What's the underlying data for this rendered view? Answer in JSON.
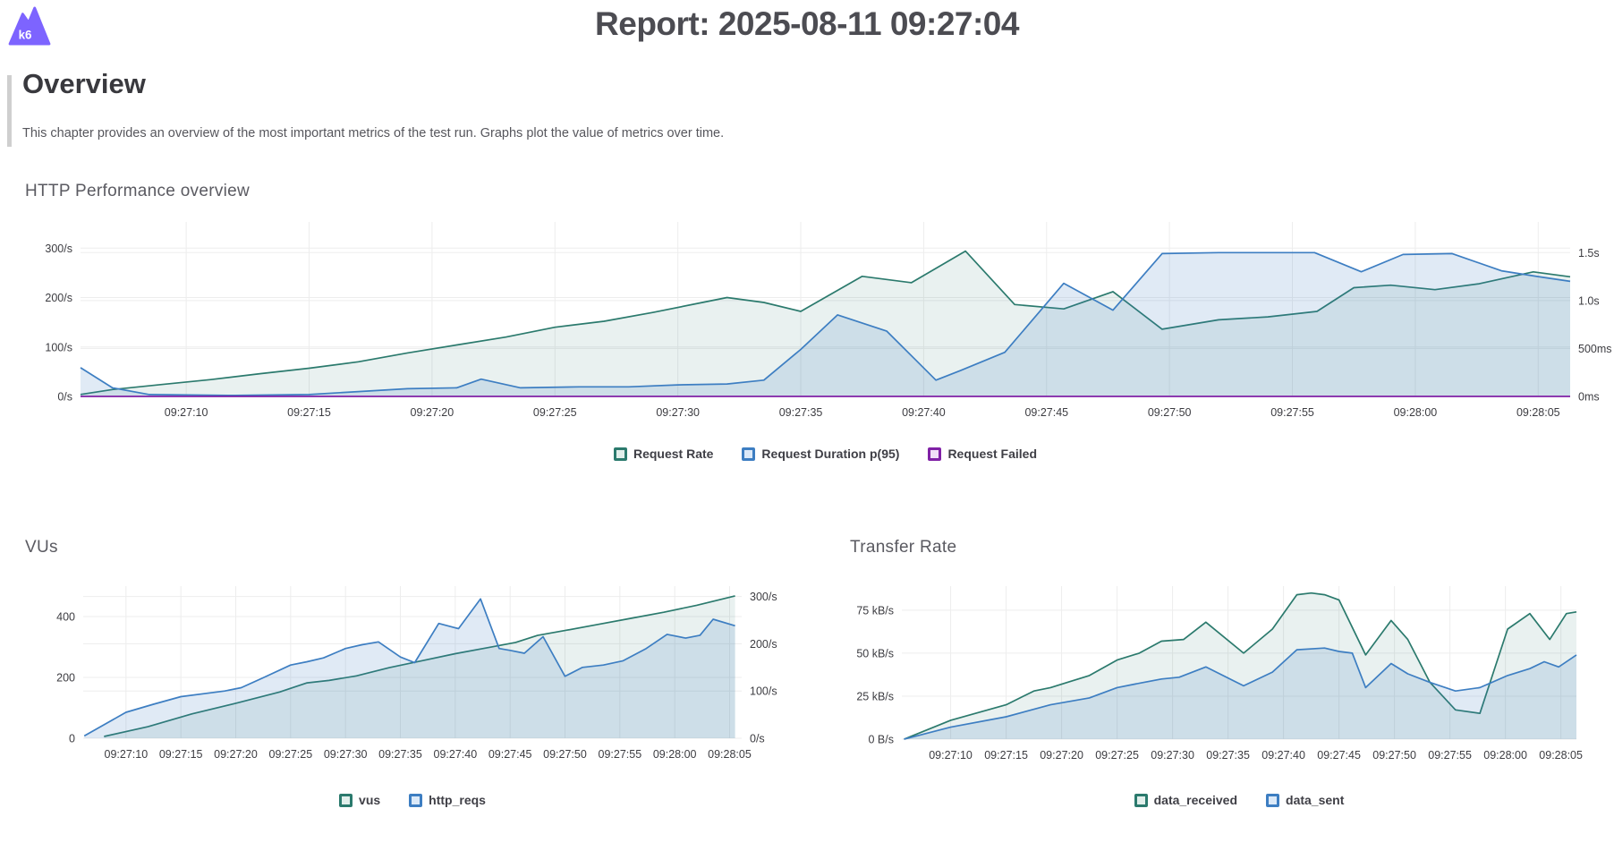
{
  "header": {
    "title": "Report: 2025-08-11 09:27:04",
    "logo_text": "k6"
  },
  "overview": {
    "heading": "Overview",
    "description": "This chapter provides an overview of the most important metrics of the test run. Graphs plot the value of metrics over time."
  },
  "colors": {
    "teal": "#2b7a6d",
    "teal_fill": "rgba(43,122,109,0.10)",
    "teal_bg": "#e1efeb",
    "blue": "#3d7ec2",
    "blue_fill": "rgba(61,126,194,0.16)",
    "blue_bg": "#dbe9f8",
    "purple": "#8021a6",
    "purple_bg": "#f0def7",
    "grid": "#ededed",
    "axis_text": "#3c3c41",
    "brand": "#7d64ff"
  },
  "chart_data": [
    {
      "type": "area",
      "key": "http-performance",
      "title": "HTTP Performance overview",
      "x_domain": [
        5.7,
        66.3
      ],
      "x_ticks": [
        {
          "v": 10,
          "label": "09:27:10"
        },
        {
          "v": 15,
          "label": "09:27:15"
        },
        {
          "v": 20,
          "label": "09:27:20"
        },
        {
          "v": 25,
          "label": "09:27:25"
        },
        {
          "v": 30,
          "label": "09:27:30"
        },
        {
          "v": 35,
          "label": "09:27:35"
        },
        {
          "v": 40,
          "label": "09:27:40"
        },
        {
          "v": 45,
          "label": "09:27:45"
        },
        {
          "v": 50,
          "label": "09:27:50"
        },
        {
          "v": 55,
          "label": "09:27:55"
        },
        {
          "v": 60,
          "label": "09:28:00"
        },
        {
          "v": 65,
          "label": "09:28:05"
        }
      ],
      "left_axis": {
        "max": 353,
        "ticks": [
          {
            "v": 0,
            "label": "0/s"
          },
          {
            "v": 100,
            "label": "100/s"
          },
          {
            "v": 200,
            "label": "200/s"
          },
          {
            "v": 300,
            "label": "300/s"
          }
        ]
      },
      "right_axis": {
        "max": 1.82,
        "ticks": [
          {
            "v": 0,
            "label": "0ms"
          },
          {
            "v": 0.5,
            "label": "500ms"
          },
          {
            "v": 1.0,
            "label": "1.0s"
          },
          {
            "v": 1.5,
            "label": "1.5s"
          }
        ]
      },
      "series": [
        {
          "name": "Request Rate",
          "axis": "left",
          "color": "teal",
          "fill": "teal_fill",
          "points": [
            [
              5.7,
              4
            ],
            [
              7,
              14
            ],
            [
              9,
              24
            ],
            [
              11,
              34
            ],
            [
              13,
              46
            ],
            [
              15,
              57
            ],
            [
              17,
              70
            ],
            [
              19,
              88
            ],
            [
              21,
              104
            ],
            [
              23,
              120
            ],
            [
              25,
              140
            ],
            [
              27,
              152
            ],
            [
              29,
              170
            ],
            [
              31,
              190
            ],
            [
              32,
              200
            ],
            [
              33.5,
              190
            ],
            [
              35,
              172
            ],
            [
              37.5,
              243
            ],
            [
              39.5,
              230
            ],
            [
              41.7,
              294
            ],
            [
              43.7,
              186
            ],
            [
              45.7,
              177
            ],
            [
              47.7,
              212
            ],
            [
              49.7,
              136
            ],
            [
              52,
              155
            ],
            [
              54,
              161
            ],
            [
              56,
              172
            ],
            [
              57.5,
              220
            ],
            [
              59,
              225
            ],
            [
              60.8,
              216
            ],
            [
              62.6,
              228
            ],
            [
              64.8,
              252
            ],
            [
              66.3,
              242
            ]
          ]
        },
        {
          "name": "Request Duration p(95)",
          "axis": "right",
          "color": "blue",
          "fill": "blue_fill",
          "points": [
            [
              5.7,
              0.3
            ],
            [
              7,
              0.09
            ],
            [
              8.5,
              0.02
            ],
            [
              12,
              0.01
            ],
            [
              15,
              0.02
            ],
            [
              17,
              0.05
            ],
            [
              19,
              0.08
            ],
            [
              21,
              0.09
            ],
            [
              22,
              0.18
            ],
            [
              23.6,
              0.09
            ],
            [
              26,
              0.1
            ],
            [
              28,
              0.1
            ],
            [
              30,
              0.12
            ],
            [
              32,
              0.13
            ],
            [
              33.5,
              0.17
            ],
            [
              35,
              0.49
            ],
            [
              36.5,
              0.85
            ],
            [
              38.5,
              0.68
            ],
            [
              40.5,
              0.17
            ],
            [
              41.5,
              0.27
            ],
            [
              43.3,
              0.46
            ],
            [
              45.7,
              1.18
            ],
            [
              47.7,
              0.9
            ],
            [
              49.7,
              1.49
            ],
            [
              52,
              1.5
            ],
            [
              54,
              1.5
            ],
            [
              55.9,
              1.5
            ],
            [
              57.8,
              1.3
            ],
            [
              59.5,
              1.48
            ],
            [
              61.5,
              1.49
            ],
            [
              63.5,
              1.31
            ],
            [
              65,
              1.25
            ],
            [
              66.3,
              1.2
            ]
          ]
        },
        {
          "name": "Request Failed",
          "axis": "left",
          "color": "purple",
          "fill": null,
          "points": [
            [
              5.7,
              0
            ],
            [
              66.3,
              0
            ]
          ]
        }
      ],
      "legend": [
        {
          "label": "Request Rate",
          "color": "teal"
        },
        {
          "label": "Request Duration p(95)",
          "color": "blue"
        },
        {
          "label": "Request Failed",
          "color": "purple"
        }
      ]
    },
    {
      "type": "area",
      "key": "vus",
      "title": "VUs",
      "x_domain": [
        6.1,
        66.1
      ],
      "x_ticks": [
        {
          "v": 10,
          "label": "09:27:10"
        },
        {
          "v": 15,
          "label": "09:27:15"
        },
        {
          "v": 20,
          "label": "09:27:20"
        },
        {
          "v": 25,
          "label": "09:27:25"
        },
        {
          "v": 30,
          "label": "09:27:30"
        },
        {
          "v": 35,
          "label": "09:27:35"
        },
        {
          "v": 40,
          "label": "09:27:40"
        },
        {
          "v": 45,
          "label": "09:27:45"
        },
        {
          "v": 50,
          "label": "09:27:50"
        },
        {
          "v": 55,
          "label": "09:27:55"
        },
        {
          "v": 60,
          "label": "09:28:00"
        },
        {
          "v": 65,
          "label": "09:28:05"
        }
      ],
      "left_axis": {
        "max": 500,
        "ticks": [
          {
            "v": 0,
            "label": "0"
          },
          {
            "v": 200,
            "label": "200"
          },
          {
            "v": 400,
            "label": "400"
          }
        ]
      },
      "right_axis": {
        "max": 322,
        "ticks": [
          {
            "v": 0,
            "label": "0/s"
          },
          {
            "v": 100,
            "label": "100/s"
          },
          {
            "v": 200,
            "label": "200/s"
          },
          {
            "v": 300,
            "label": "300/s"
          }
        ]
      },
      "series": [
        {
          "name": "vus",
          "axis": "left",
          "color": "teal",
          "fill": "teal_fill",
          "points": [
            [
              8,
              6
            ],
            [
              12,
              38
            ],
            [
              16,
              80
            ],
            [
              20,
              115
            ],
            [
              24,
              152
            ],
            [
              26.5,
              182
            ],
            [
              28.5,
              190
            ],
            [
              31,
              205
            ],
            [
              34,
              232
            ],
            [
              37,
              255
            ],
            [
              40,
              278
            ],
            [
              43,
              298
            ],
            [
              45.5,
              315
            ],
            [
              47.5,
              338
            ],
            [
              50,
              354
            ],
            [
              53,
              374
            ],
            [
              56,
              394
            ],
            [
              59,
              414
            ],
            [
              62,
              437
            ],
            [
              65.5,
              468
            ]
          ]
        },
        {
          "name": "http_reqs",
          "axis": "right",
          "color": "blue",
          "fill": "blue_fill",
          "points": [
            [
              6.2,
              5
            ],
            [
              10,
              55
            ],
            [
              12.5,
              72
            ],
            [
              15,
              88
            ],
            [
              19,
              100
            ],
            [
              20.5,
              107
            ],
            [
              22.5,
              128
            ],
            [
              25,
              155
            ],
            [
              26.5,
              162
            ],
            [
              28,
              170
            ],
            [
              30,
              190
            ],
            [
              31.5,
              198
            ],
            [
              33,
              204
            ],
            [
              35,
              172
            ],
            [
              36.3,
              160
            ],
            [
              38.5,
              243
            ],
            [
              40.3,
              232
            ],
            [
              42.3,
              295
            ],
            [
              44,
              190
            ],
            [
              45,
              186
            ],
            [
              46.3,
              180
            ],
            [
              48,
              215
            ],
            [
              50,
              131
            ],
            [
              51.6,
              150
            ],
            [
              53.5,
              155
            ],
            [
              55.3,
              164
            ],
            [
              57.4,
              190
            ],
            [
              59.3,
              220
            ],
            [
              61,
              212
            ],
            [
              62.3,
              218
            ],
            [
              63.5,
              252
            ],
            [
              65.5,
              238
            ]
          ]
        }
      ],
      "legend": [
        {
          "label": "vus",
          "color": "teal"
        },
        {
          "label": "http_reqs",
          "color": "blue"
        }
      ]
    },
    {
      "type": "area",
      "key": "transfer-rate",
      "title": "Transfer Rate",
      "x_domain": [
        5.6,
        66.4
      ],
      "x_ticks": [
        {
          "v": 10,
          "label": "09:27:10"
        },
        {
          "v": 15,
          "label": "09:27:15"
        },
        {
          "v": 20,
          "label": "09:27:20"
        },
        {
          "v": 25,
          "label": "09:27:25"
        },
        {
          "v": 30,
          "label": "09:27:30"
        },
        {
          "v": 35,
          "label": "09:27:35"
        },
        {
          "v": 40,
          "label": "09:27:40"
        },
        {
          "v": 45,
          "label": "09:27:45"
        },
        {
          "v": 50,
          "label": "09:27:50"
        },
        {
          "v": 55,
          "label": "09:27:55"
        },
        {
          "v": 60,
          "label": "09:28:00"
        },
        {
          "v": 65,
          "label": "09:28:05"
        }
      ],
      "left_axis": {
        "max": 89,
        "ticks": [
          {
            "v": 0,
            "label": "0 B/s"
          },
          {
            "v": 25,
            "label": "25 kB/s"
          },
          {
            "v": 50,
            "label": "50 kB/s"
          },
          {
            "v": 75,
            "label": "75 kB/s"
          }
        ]
      },
      "right_axis": null,
      "series": [
        {
          "name": "data_received",
          "axis": "left",
          "color": "teal",
          "fill": "teal_fill",
          "points": [
            [
              5.8,
              0
            ],
            [
              10,
              11
            ],
            [
              15,
              20
            ],
            [
              17.5,
              28
            ],
            [
              19,
              30
            ],
            [
              22.5,
              37
            ],
            [
              25,
              46
            ],
            [
              27,
              50
            ],
            [
              29,
              57
            ],
            [
              31,
              58
            ],
            [
              33,
              68
            ],
            [
              36.4,
              50
            ],
            [
              39,
              64
            ],
            [
              41.2,
              84
            ],
            [
              42.5,
              85
            ],
            [
              43.7,
              84
            ],
            [
              45,
              81
            ],
            [
              47.4,
              49
            ],
            [
              49.7,
              69
            ],
            [
              51.2,
              58
            ],
            [
              53.2,
              33
            ],
            [
              55.5,
              17
            ],
            [
              57.7,
              15
            ],
            [
              60.2,
              64
            ],
            [
              62.2,
              73
            ],
            [
              64,
              58
            ],
            [
              65.5,
              73
            ],
            [
              66.4,
              74
            ]
          ]
        },
        {
          "name": "data_sent",
          "axis": "left",
          "color": "blue",
          "fill": "blue_fill",
          "points": [
            [
              5.8,
              0
            ],
            [
              10,
              7
            ],
            [
              15,
              13
            ],
            [
              19,
              20
            ],
            [
              22.5,
              24
            ],
            [
              25,
              30
            ],
            [
              26.6,
              32
            ],
            [
              29,
              35
            ],
            [
              30.6,
              36
            ],
            [
              33,
              42
            ],
            [
              36.4,
              31
            ],
            [
              39,
              39
            ],
            [
              41.2,
              52
            ],
            [
              43.7,
              53
            ],
            [
              45,
              51
            ],
            [
              46.2,
              50
            ],
            [
              47.4,
              30
            ],
            [
              49.7,
              44
            ],
            [
              51.2,
              38
            ],
            [
              53.2,
              33
            ],
            [
              55.5,
              28
            ],
            [
              57.7,
              30
            ],
            [
              60.2,
              37
            ],
            [
              62.2,
              41
            ],
            [
              63.5,
              45
            ],
            [
              64.8,
              42
            ],
            [
              66.4,
              49
            ]
          ]
        }
      ],
      "legend": [
        {
          "label": "data_received",
          "color": "teal"
        },
        {
          "label": "data_sent",
          "color": "blue"
        }
      ]
    }
  ]
}
